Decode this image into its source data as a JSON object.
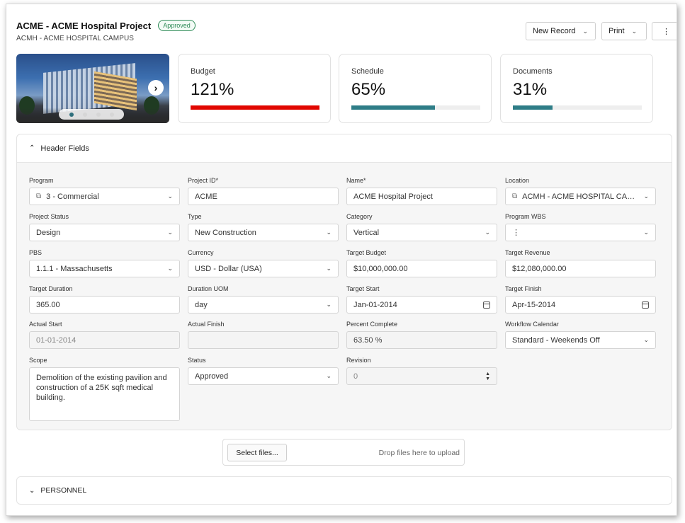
{
  "header": {
    "title": "ACME - ACME Hospital Project",
    "badge": "Approved",
    "subtitle": "ACMH - ACME HOSPITAL CAMPUS",
    "buttons": {
      "new_record": "New Record",
      "print": "Print",
      "more": "⋮"
    }
  },
  "hero": {
    "slides": 4,
    "active_slide": 1
  },
  "kpis": [
    {
      "label": "Budget",
      "value": "121%",
      "fraction": 1.0,
      "color": "#e10600"
    },
    {
      "label": "Schedule",
      "value": "65%",
      "fraction": 0.65,
      "color": "#2e7d87"
    },
    {
      "label": "Documents",
      "value": "31%",
      "fraction": 0.31,
      "color": "#2e7d87"
    }
  ],
  "sections": {
    "header_fields": "Header Fields",
    "personnel": "PERSONNEL"
  },
  "fields": {
    "program": {
      "label": "Program",
      "value": "3 - Commercial"
    },
    "project_id": {
      "label": "Project ID*",
      "value": "ACME"
    },
    "name": {
      "label": "Name*",
      "value": "ACME Hospital Project"
    },
    "location": {
      "label": "Location",
      "value": "ACMH - ACME HOSPITAL CAMPUS"
    },
    "project_status": {
      "label": "Project Status",
      "value": "Design"
    },
    "type": {
      "label": "Type",
      "value": "New Construction"
    },
    "category": {
      "label": "Category",
      "value": "Vertical"
    },
    "program_wbs": {
      "label": "Program WBS",
      "value": "⋮"
    },
    "pbs": {
      "label": "PBS",
      "value": "1.1.1 - Massachusetts"
    },
    "currency": {
      "label": "Currency",
      "value": "USD - Dollar (USA)"
    },
    "target_budget": {
      "label": "Target Budget",
      "value": "$10,000,000.00"
    },
    "target_revenue": {
      "label": "Target Revenue",
      "value": "$12,080,000.00"
    },
    "target_duration": {
      "label": "Target Duration",
      "value": "365.00"
    },
    "duration_uom": {
      "label": "Duration UOM",
      "value": "day"
    },
    "target_start": {
      "label": "Target Start",
      "value": "Jan-01-2014"
    },
    "target_finish": {
      "label": "Target Finish",
      "value": "Apr-15-2014"
    },
    "actual_start": {
      "label": "Actual Start",
      "value": "01-01-2014"
    },
    "actual_finish": {
      "label": "Actual Finish",
      "value": ""
    },
    "percent_complete": {
      "label": "Percent Complete",
      "value": "63.50 %"
    },
    "workflow_calendar": {
      "label": "Workflow Calendar",
      "value": "Standard - Weekends Off"
    },
    "scope": {
      "label": "Scope",
      "value": "Demolition of the existing pavilion and construction of a 25K sqft medical building."
    },
    "status": {
      "label": "Status",
      "value": "Approved"
    },
    "revision": {
      "label": "Revision",
      "value": "0"
    }
  },
  "upload": {
    "button": "Select files...",
    "hint": "Drop files here to upload"
  }
}
